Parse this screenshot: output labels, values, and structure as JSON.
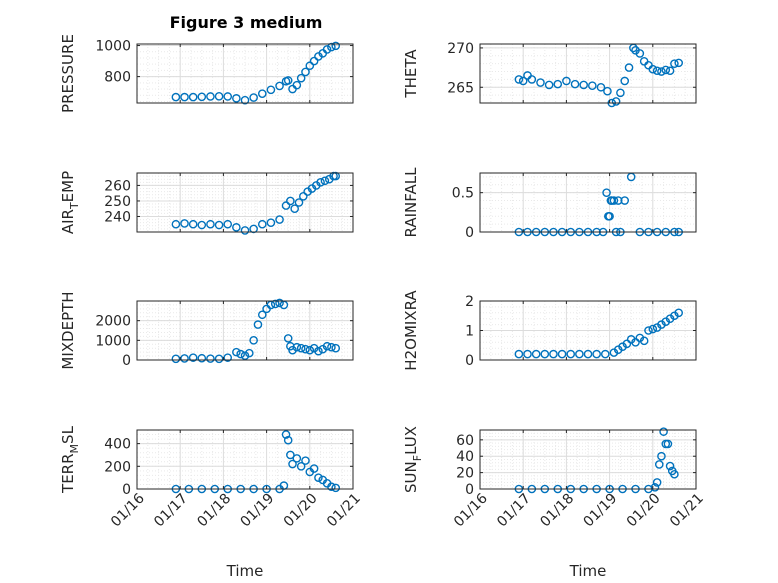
{
  "figure": {
    "title": "Figure 3 medium"
  },
  "colors": {
    "marker": "#0072BD",
    "axes": "#262626",
    "grid_major": "#dcdcdc",
    "grid_minor": "#e9e9e9"
  },
  "chart_data": [
    {
      "type": "scatter",
      "panel": "pressure",
      "ylabel": "PRESSURE",
      "ylabel_parts": null,
      "ylim": [
        630,
        1010
      ],
      "yticks": [
        800,
        1000
      ],
      "ytick_labels": [
        "800",
        "1000"
      ],
      "xlim": [
        16,
        21
      ],
      "xticks": [
        16,
        17,
        18,
        19,
        20,
        21
      ],
      "xtick_labels": [
        "01/16",
        "01/17",
        "01/18",
        "01/19",
        "01/20",
        "01/21"
      ],
      "show_xtick_labels": false,
      "xlabel": "",
      "x": [
        16.9,
        17.1,
        17.3,
        17.5,
        17.7,
        17.9,
        18.1,
        18.3,
        18.5,
        18.7,
        18.9,
        19.1,
        19.3,
        19.45,
        19.5,
        19.6,
        19.7,
        19.8,
        19.9,
        20.0,
        20.1,
        20.2,
        20.3,
        20.4,
        20.5,
        20.6
      ],
      "y": [
        668,
        668,
        668,
        670,
        672,
        673,
        672,
        660,
        648,
        665,
        690,
        715,
        740,
        770,
        775,
        720,
        745,
        790,
        830,
        870,
        900,
        930,
        950,
        975,
        990,
        998
      ]
    },
    {
      "type": "scatter",
      "panel": "theta",
      "ylabel": "THETA",
      "ylabel_parts": null,
      "ylim": [
        263,
        270.5
      ],
      "yticks": [
        265,
        270
      ],
      "ytick_labels": [
        "265",
        "270"
      ],
      "xlim": [
        16,
        21
      ],
      "xticks": [
        16,
        17,
        18,
        19,
        20,
        21
      ],
      "xtick_labels": [
        "01/16",
        "01/17",
        "01/18",
        "01/19",
        "01/20",
        "01/21"
      ],
      "show_xtick_labels": false,
      "xlabel": "",
      "x": [
        16.9,
        17.0,
        17.1,
        17.2,
        17.4,
        17.6,
        17.8,
        18.0,
        18.2,
        18.4,
        18.6,
        18.8,
        18.95,
        19.05,
        19.15,
        19.25,
        19.35,
        19.45,
        19.55,
        19.6,
        19.7,
        19.8,
        19.9,
        20.0,
        20.1,
        20.2,
        20.3,
        20.4,
        20.5,
        20.6
      ],
      "y": [
        266.0,
        265.8,
        266.5,
        266.0,
        265.6,
        265.3,
        265.4,
        265.8,
        265.4,
        265.3,
        265.2,
        265.0,
        264.5,
        263.0,
        263.2,
        264.3,
        265.8,
        267.5,
        270.0,
        269.7,
        269.3,
        268.3,
        267.8,
        267.3,
        267.1,
        267.0,
        267.2,
        267.1,
        268.0,
        268.1
      ]
    },
    {
      "type": "scatter",
      "panel": "air_temp",
      "ylabel": "AIR_TEMP",
      "ylabel_parts": [
        "AIR",
        "T",
        "EMP"
      ],
      "ylim": [
        230,
        268
      ],
      "yticks": [
        240,
        250,
        260
      ],
      "ytick_labels": [
        "240",
        "250",
        "260"
      ],
      "xlim": [
        16,
        21
      ],
      "xticks": [
        16,
        17,
        18,
        19,
        20,
        21
      ],
      "xtick_labels": [
        "01/16",
        "01/17",
        "01/18",
        "01/19",
        "01/20",
        "01/21"
      ],
      "show_xtick_labels": false,
      "xlabel": "",
      "x": [
        16.9,
        17.1,
        17.3,
        17.5,
        17.7,
        17.9,
        18.1,
        18.3,
        18.5,
        18.7,
        18.9,
        19.1,
        19.3,
        19.45,
        19.55,
        19.65,
        19.75,
        19.85,
        19.95,
        20.05,
        20.15,
        20.25,
        20.35,
        20.45,
        20.55,
        20.6
      ],
      "y": [
        235,
        235.5,
        235,
        234.5,
        235,
        234.5,
        235,
        233,
        231,
        232,
        235,
        236,
        238,
        247,
        250,
        245,
        249,
        253,
        256,
        258,
        260,
        262,
        263,
        264,
        266,
        266
      ]
    },
    {
      "type": "scatter",
      "panel": "rainfall",
      "ylabel": "RAINFALL",
      "ylabel_parts": null,
      "ylim": [
        0,
        0.75
      ],
      "yticks": [
        0,
        0.5
      ],
      "ytick_labels": [
        "0",
        "0.5"
      ],
      "xlim": [
        16,
        21
      ],
      "xticks": [
        16,
        17,
        18,
        19,
        20,
        21
      ],
      "xtick_labels": [
        "01/16",
        "01/17",
        "01/18",
        "01/19",
        "01/20",
        "01/21"
      ],
      "show_xtick_labels": false,
      "xlabel": "",
      "x": [
        16.9,
        17.1,
        17.3,
        17.5,
        17.7,
        17.9,
        18.1,
        18.3,
        18.5,
        18.7,
        18.85,
        18.93,
        18.97,
        19.0,
        19.03,
        19.05,
        19.1,
        19.15,
        19.2,
        19.25,
        19.35,
        19.5,
        19.7,
        19.9,
        20.1,
        20.3,
        20.5,
        20.6
      ],
      "y": [
        0,
        0,
        0,
        0,
        0,
        0,
        0,
        0,
        0,
        0,
        0,
        0.5,
        0.2,
        0.2,
        0.4,
        0.4,
        0.4,
        0,
        0.4,
        0,
        0.4,
        0.7,
        0,
        0,
        0,
        0,
        0,
        0
      ]
    },
    {
      "type": "scatter",
      "panel": "mixdepth",
      "ylabel": "MIXDEPTH",
      "ylabel_parts": null,
      "ylim": [
        0,
        3000
      ],
      "yticks": [
        0,
        1000,
        2000
      ],
      "ytick_labels": [
        "0",
        "1000",
        "2000"
      ],
      "xlim": [
        16,
        21
      ],
      "xticks": [
        16,
        17,
        18,
        19,
        20,
        21
      ],
      "xtick_labels": [
        "01/16",
        "01/17",
        "01/18",
        "01/19",
        "01/20",
        "01/21"
      ],
      "show_xtick_labels": false,
      "xlabel": "",
      "x": [
        16.9,
        17.1,
        17.3,
        17.5,
        17.7,
        17.9,
        18.1,
        18.3,
        18.4,
        18.5,
        18.6,
        18.7,
        18.8,
        18.9,
        19.0,
        19.1,
        19.2,
        19.3,
        19.4,
        19.5,
        19.55,
        19.6,
        19.7,
        19.8,
        19.9,
        20.0,
        20.1,
        20.2,
        20.3,
        20.4,
        20.5,
        20.6
      ],
      "y": [
        60,
        80,
        120,
        90,
        70,
        60,
        120,
        400,
        300,
        220,
        350,
        1000,
        1800,
        2300,
        2600,
        2800,
        2850,
        2900,
        2800,
        1100,
        700,
        500,
        650,
        600,
        550,
        500,
        600,
        450,
        550,
        700,
        650,
        600
      ]
    },
    {
      "type": "scatter",
      "panel": "h2omixra",
      "ylabel": "H2OMIXRA",
      "ylabel_parts": null,
      "ylim": [
        0,
        2
      ],
      "yticks": [
        0,
        1,
        2
      ],
      "ytick_labels": [
        "0",
        "1",
        "2"
      ],
      "xlim": [
        16,
        21
      ],
      "xticks": [
        16,
        17,
        18,
        19,
        20,
        21
      ],
      "xtick_labels": [
        "01/16",
        "01/17",
        "01/18",
        "01/19",
        "01/20",
        "01/21"
      ],
      "show_xtick_labels": false,
      "xlabel": "",
      "x": [
        16.9,
        17.1,
        17.3,
        17.5,
        17.7,
        17.9,
        18.1,
        18.3,
        18.5,
        18.7,
        18.9,
        19.1,
        19.2,
        19.3,
        19.4,
        19.5,
        19.6,
        19.7,
        19.8,
        19.9,
        20.0,
        20.1,
        20.2,
        20.3,
        20.4,
        20.5,
        20.6
      ],
      "y": [
        0.2,
        0.2,
        0.2,
        0.2,
        0.2,
        0.2,
        0.2,
        0.2,
        0.2,
        0.2,
        0.2,
        0.25,
        0.35,
        0.45,
        0.55,
        0.7,
        0.6,
        0.75,
        0.65,
        1.0,
        1.05,
        1.1,
        1.2,
        1.3,
        1.4,
        1.5,
        1.6
      ]
    },
    {
      "type": "scatter",
      "panel": "terr_msl",
      "ylabel": "TERR_MSL",
      "ylabel_parts": [
        "TERR",
        "M",
        "SL"
      ],
      "ylim": [
        0,
        520
      ],
      "yticks": [
        0,
        200,
        400
      ],
      "ytick_labels": [
        "0",
        "200",
        "400"
      ],
      "xlim": [
        16,
        21
      ],
      "xticks": [
        16,
        17,
        18,
        19,
        20,
        21
      ],
      "xtick_labels": [
        "01/16",
        "01/17",
        "01/18",
        "01/19",
        "01/20",
        "01/21"
      ],
      "show_xtick_labels": true,
      "xlabel": "Time",
      "x": [
        16.9,
        17.2,
        17.5,
        17.8,
        18.1,
        18.4,
        18.7,
        19.0,
        19.3,
        19.4,
        19.45,
        19.5,
        19.55,
        19.6,
        19.7,
        19.8,
        19.9,
        20.0,
        20.1,
        20.2,
        20.3,
        20.4,
        20.5,
        20.6
      ],
      "y": [
        0,
        0,
        0,
        0,
        0,
        0,
        0,
        0,
        0,
        30,
        480,
        430,
        300,
        220,
        270,
        200,
        250,
        150,
        180,
        100,
        80,
        50,
        20,
        10
      ]
    },
    {
      "type": "scatter",
      "panel": "sun_flux",
      "ylabel": "SUN_FLUX",
      "ylabel_parts": [
        "SUN",
        "F",
        "LUX"
      ],
      "ylim": [
        0,
        72
      ],
      "yticks": [
        0,
        20,
        40,
        60
      ],
      "ytick_labels": [
        "0",
        "20",
        "40",
        "60"
      ],
      "xlim": [
        16,
        21
      ],
      "xticks": [
        16,
        17,
        18,
        19,
        20,
        21
      ],
      "xtick_labels": [
        "01/16",
        "01/17",
        "01/18",
        "01/19",
        "01/20",
        "01/21"
      ],
      "show_xtick_labels": true,
      "xlabel": "Time",
      "x": [
        16.9,
        17.2,
        17.5,
        17.8,
        18.1,
        18.4,
        18.7,
        19.0,
        19.3,
        19.6,
        19.9,
        20.05,
        20.1,
        20.15,
        20.2,
        20.25,
        20.3,
        20.35,
        20.4,
        20.45,
        20.5
      ],
      "y": [
        0,
        0,
        0,
        0,
        0,
        0,
        0,
        0,
        0,
        0,
        0,
        2,
        8,
        30,
        40,
        70,
        55,
        55,
        28,
        22,
        18
      ]
    }
  ]
}
